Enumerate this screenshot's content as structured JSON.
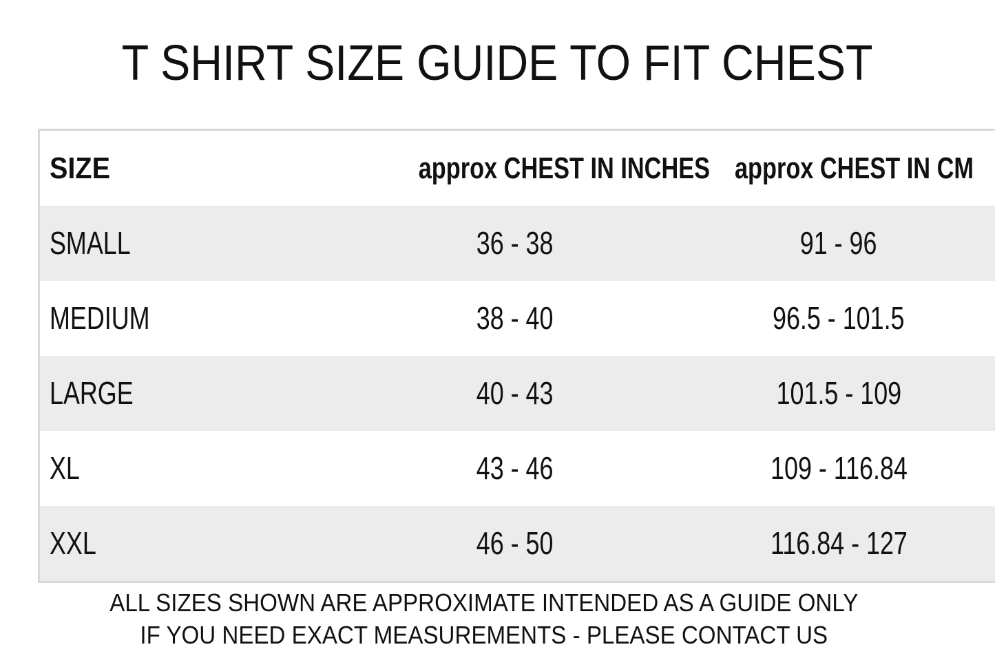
{
  "header": {
    "title": "T SHIRT SIZE GUIDE TO FIT CHEST"
  },
  "table": {
    "columns": [
      "SIZE",
      "approx CHEST IN INCHES",
      "approx CHEST IN CM"
    ],
    "rows": [
      [
        "SMALL",
        "36 - 38",
        "91 - 96"
      ],
      [
        "MEDIUM",
        "38 - 40",
        "96.5 - 101.5"
      ],
      [
        "LARGE",
        "40 - 43",
        "101.5 - 109"
      ],
      [
        "XL",
        "43 - 46",
        "109 - 116.84"
      ],
      [
        "XXL",
        "46 - 50",
        "116.84 - 127"
      ]
    ]
  },
  "footer": {
    "lines": [
      "ALL SIZES SHOWN ARE APPROXIMATE INTENDED AS A GUIDE ONLY",
      "IF  YOU NEED EXACT MEASUREMENTS - PLEASE CONTACT US"
    ]
  }
}
